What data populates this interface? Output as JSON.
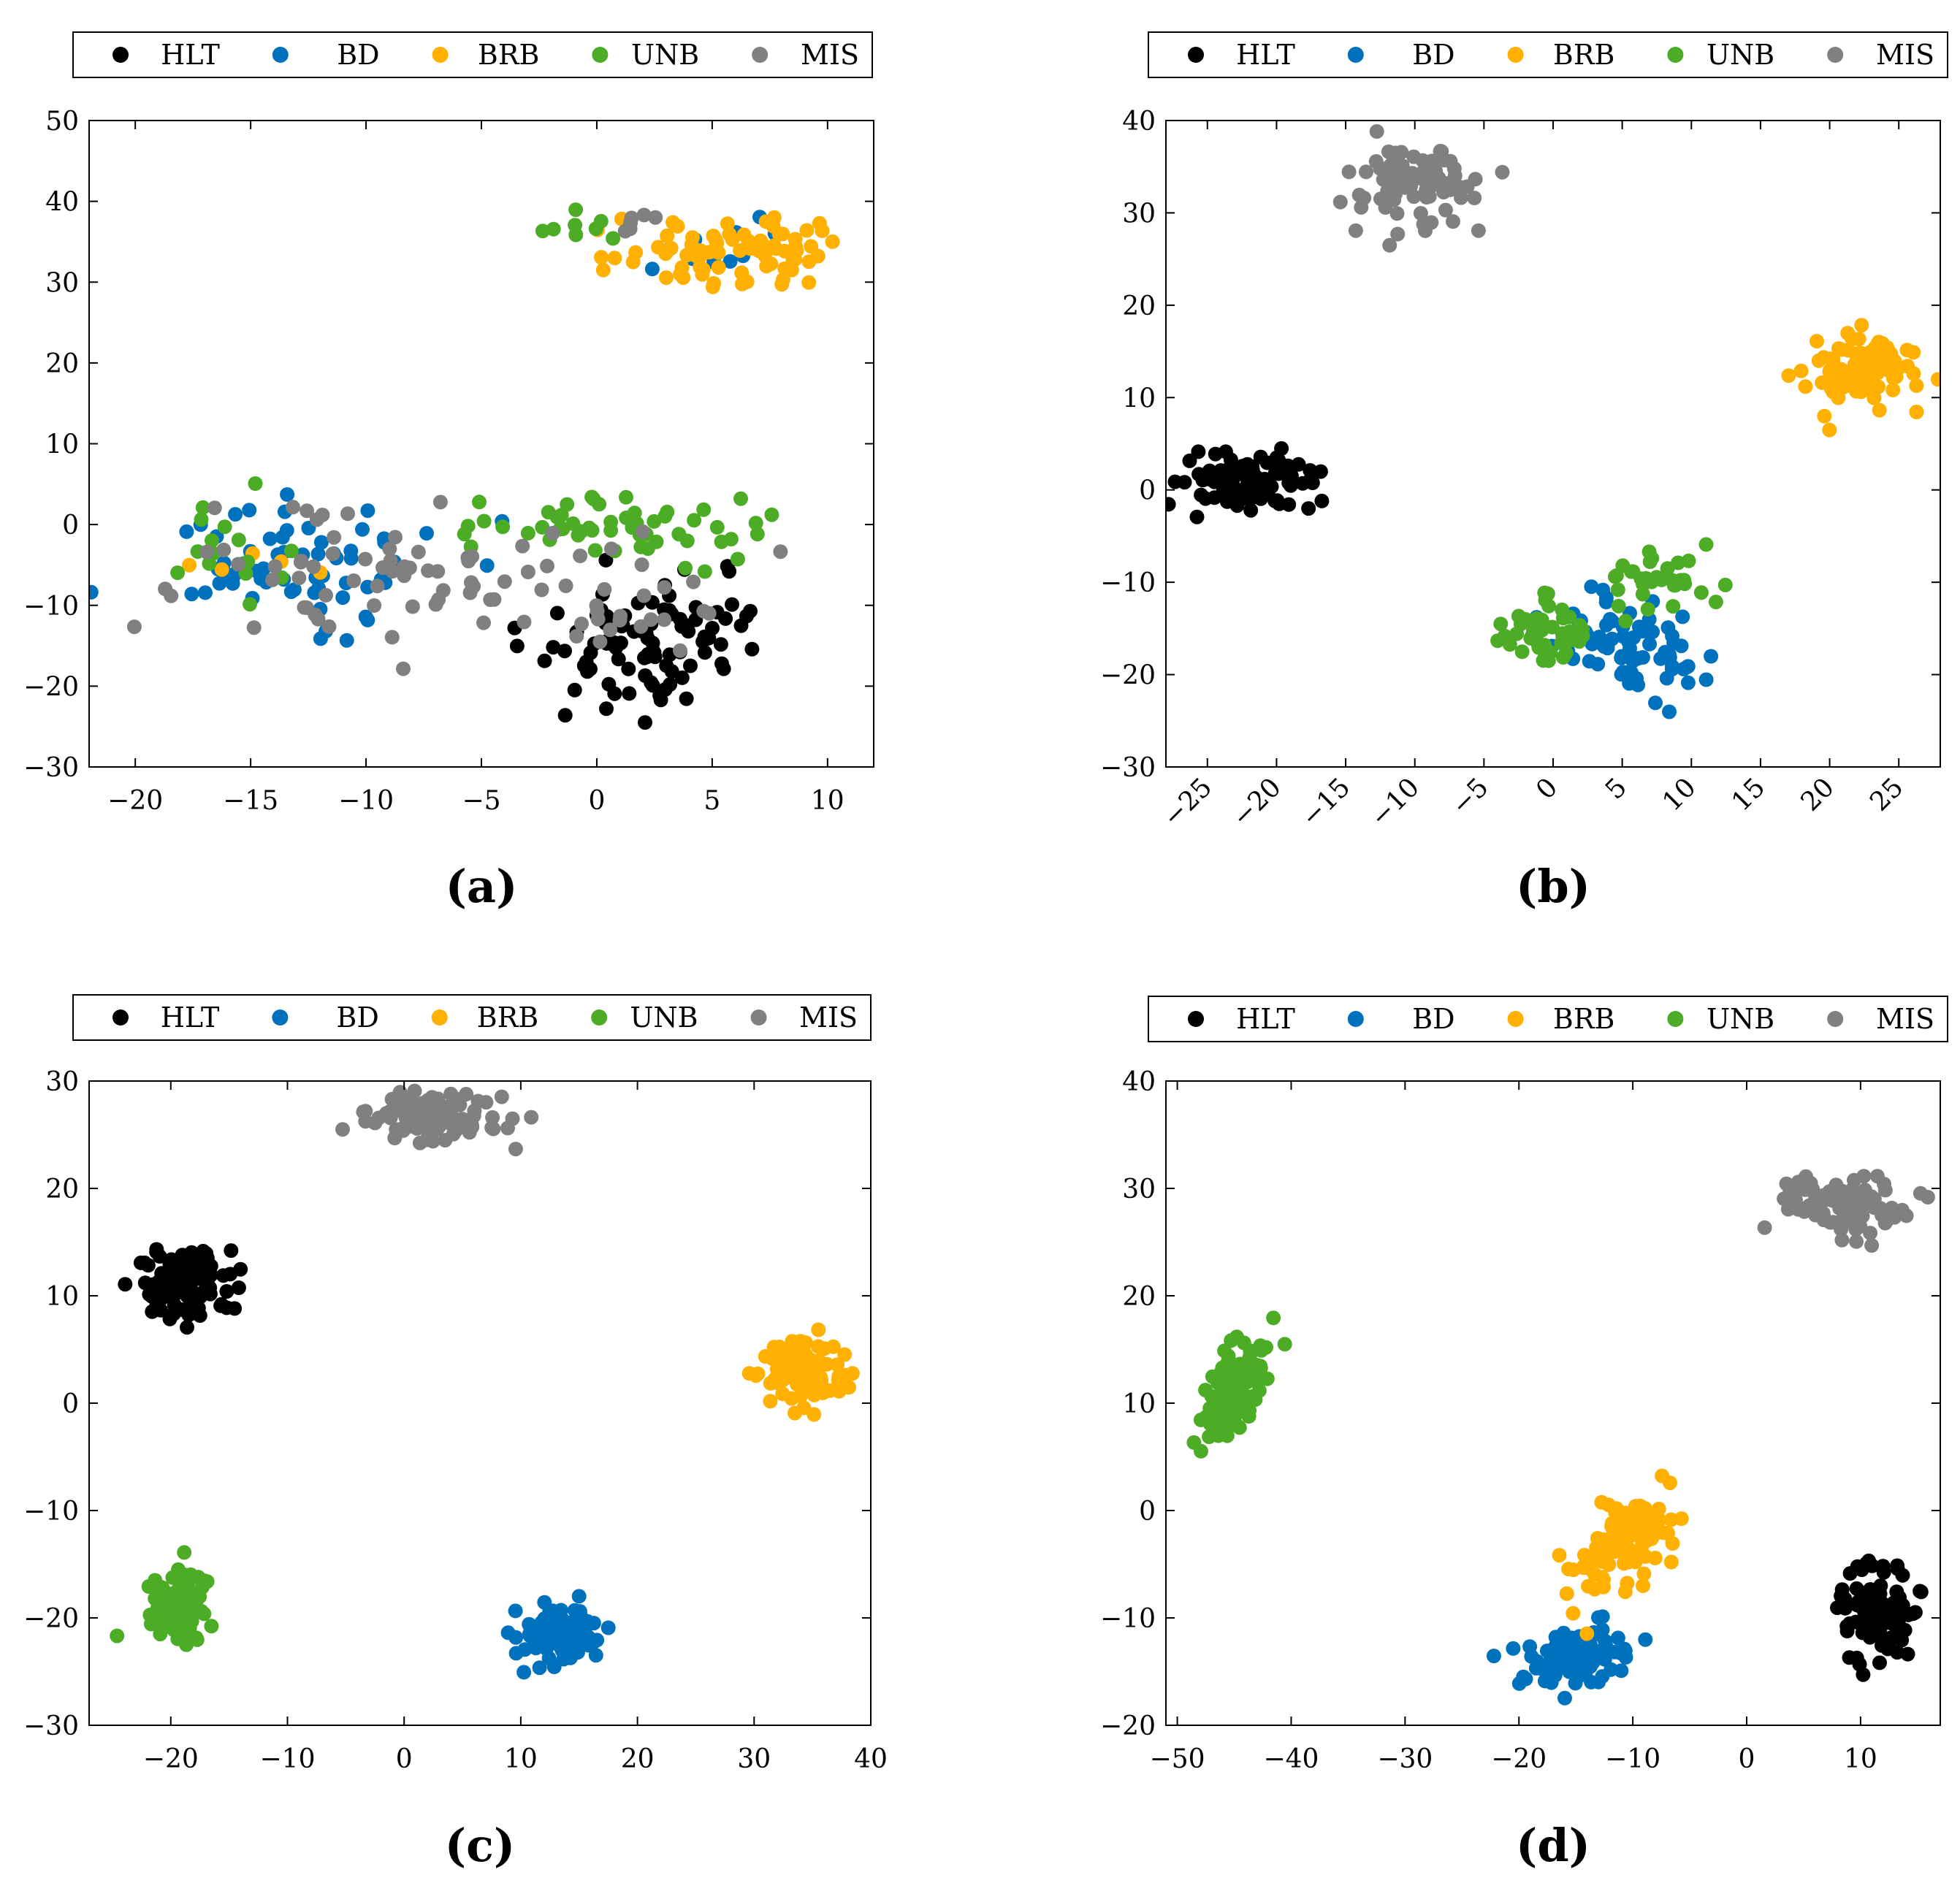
{
  "figure": {
    "colors": {
      "HLT": "#000000",
      "BD": "#0072BD",
      "BRB": "#FFB000",
      "UNB": "#4DAC26",
      "MIS": "#808080"
    }
  },
  "chart_data": [
    {
      "type": "scatter",
      "panel_label": "(a)",
      "legend": [
        "HLT",
        "BD",
        "BRB",
        "UNB",
        "MIS"
      ],
      "xlim": [
        -22,
        12
      ],
      "ylim": [
        -30,
        50
      ],
      "xticks": [
        -20,
        -15,
        -10,
        -5,
        0,
        5,
        10
      ],
      "xtick_labels": [
        "−20",
        "−15",
        "−10",
        "−5",
        "0",
        "5",
        "10"
      ],
      "yticks": [
        -30,
        -20,
        -10,
        0,
        10,
        20,
        30,
        40,
        50
      ],
      "ytick_labels": [
        "−30",
        "−20",
        "−10",
        "0",
        "10",
        "20",
        "30",
        "40",
        "50"
      ],
      "xtick_rotation": 0,
      "series": [
        {
          "name": "HLT",
          "clusters": [
            {
              "cx": 1.5,
              "cy": -16,
              "sx": 2.0,
              "sy": 4.0,
              "n": 70,
              "r": 0.15
            },
            {
              "cx": 4.5,
              "cy": -12,
              "sx": 1.5,
              "sy": 3.0,
              "n": 25,
              "r": 0
            }
          ]
        },
        {
          "name": "BD",
          "clusters": [
            {
              "cx": -13,
              "cy": -4,
              "sx": 4.0,
              "sy": 4.0,
              "n": 65,
              "r": 0
            },
            {
              "cx": 5.0,
              "cy": 35,
              "sx": 2.0,
              "sy": 2.0,
              "n": 10,
              "r": 0
            }
          ]
        },
        {
          "name": "BRB",
          "clusters": [
            {
              "cx": 6.0,
              "cy": 34,
              "sx": 2.5,
              "sy": 2.5,
              "n": 80,
              "r": 0
            },
            {
              "cx": -16,
              "cy": -3,
              "sx": 2.0,
              "sy": 2.0,
              "n": 5,
              "r": 0
            }
          ]
        },
        {
          "name": "UNB",
          "clusters": [
            {
              "cx": 0.5,
              "cy": -0.5,
              "sx": 3.5,
              "sy": 2.0,
              "n": 55,
              "r": 0
            },
            {
              "cx": -16,
              "cy": -4,
              "sx": 1.5,
              "sy": 4.0,
              "n": 15,
              "r": 0
            },
            {
              "cx": -0.5,
              "cy": 37,
              "sx": 1.0,
              "sy": 1.0,
              "n": 8,
              "r": 0
            }
          ]
        },
        {
          "name": "MIS",
          "clusters": [
            {
              "cx": -8,
              "cy": -6,
              "sx": 5.0,
              "sy": 4.0,
              "n": 75,
              "r": 0
            },
            {
              "cx": 2.0,
              "cy": -12,
              "sx": 1.5,
              "sy": 3.0,
              "n": 15,
              "r": 0
            },
            {
              "cx": 1.5,
              "cy": 37,
              "sx": 1.0,
              "sy": 1.0,
              "n": 6,
              "r": 0
            }
          ]
        }
      ]
    },
    {
      "type": "scatter",
      "panel_label": "(b)",
      "legend": [
        "HLT",
        "BD",
        "BRB",
        "UNB",
        "MIS"
      ],
      "xlim": [
        -28,
        28
      ],
      "ylim": [
        -30,
        40
      ],
      "xticks": [
        -25,
        -20,
        -15,
        -10,
        -5,
        0,
        5,
        10,
        15,
        20,
        25
      ],
      "xtick_labels": [
        "−25",
        "−20",
        "−15",
        "−10",
        "−5",
        "0",
        "5",
        "10",
        "15",
        "20",
        "25"
      ],
      "yticks": [
        -30,
        -20,
        -10,
        0,
        10,
        20,
        30,
        40
      ],
      "ytick_labels": [
        "−30",
        "−20",
        "−10",
        "0",
        "10",
        "20",
        "30",
        "40"
      ],
      "xtick_rotation": -45,
      "series": [
        {
          "name": "HLT",
          "clusters": [
            {
              "cx": -22.5,
              "cy": 0.5,
              "sx": 2.5,
              "sy": 1.6,
              "n": 100,
              "r": 0
            }
          ]
        },
        {
          "name": "BD",
          "clusters": [
            {
              "cx": 5.0,
              "cy": -17,
              "sx": 2.5,
              "sy": 3.0,
              "n": 75,
              "r": -0.4
            }
          ]
        },
        {
          "name": "BRB",
          "clusters": [
            {
              "cx": 22.5,
              "cy": 13.5,
              "sx": 2.0,
              "sy": 2.2,
              "n": 100,
              "r": 0
            }
          ]
        },
        {
          "name": "UNB",
          "clusters": [
            {
              "cx": 0.0,
              "cy": -15,
              "sx": 2.0,
              "sy": 2.0,
              "n": 45,
              "r": 0
            },
            {
              "cx": 7.5,
              "cy": -10,
              "sx": 2.0,
              "sy": 1.6,
              "n": 35,
              "r": 0
            }
          ]
        },
        {
          "name": "MIS",
          "clusters": [
            {
              "cx": -10,
              "cy": 33,
              "sx": 2.2,
              "sy": 2.5,
              "n": 85,
              "r": 0
            }
          ]
        }
      ]
    },
    {
      "type": "scatter",
      "panel_label": "(c)",
      "legend": [
        "HLT",
        "BD",
        "BRB",
        "UNB",
        "MIS"
      ],
      "xlim": [
        -27,
        40
      ],
      "ylim": [
        -30,
        30
      ],
      "xticks": [
        -20,
        -10,
        0,
        10,
        20,
        30,
        40
      ],
      "xtick_labels": [
        "−20",
        "−10",
        "0",
        "10",
        "20",
        "30",
        "40"
      ],
      "yticks": [
        -30,
        -20,
        -10,
        0,
        10,
        20,
        30
      ],
      "ytick_labels": [
        "−30",
        "−20",
        "−10",
        "0",
        "10",
        "20",
        "30"
      ],
      "xtick_rotation": 0,
      "series": [
        {
          "name": "HLT",
          "clusters": [
            {
              "cx": -19,
              "cy": 11,
              "sx": 2.0,
              "sy": 1.7,
              "n": 100,
              "r": 0
            }
          ]
        },
        {
          "name": "BD",
          "clusters": [
            {
              "cx": 13.5,
              "cy": -21.5,
              "sx": 2.0,
              "sy": 1.4,
              "n": 100,
              "r": 0
            }
          ]
        },
        {
          "name": "BRB",
          "clusters": [
            {
              "cx": 34,
              "cy": 3,
              "sx": 1.8,
              "sy": 1.5,
              "n": 100,
              "r": 0
            }
          ]
        },
        {
          "name": "UNB",
          "clusters": [
            {
              "cx": -19.5,
              "cy": -19,
              "sx": 1.7,
              "sy": 1.7,
              "n": 100,
              "r": 0
            }
          ]
        },
        {
          "name": "MIS",
          "clusters": [
            {
              "cx": 2.5,
              "cy": 26.5,
              "sx": 3.0,
              "sy": 1.2,
              "n": 100,
              "r": 0
            }
          ]
        }
      ]
    },
    {
      "type": "scatter",
      "panel_label": "(d)",
      "legend": [
        "HLT",
        "BD",
        "BRB",
        "UNB",
        "MIS"
      ],
      "xlim": [
        -51,
        17
      ],
      "ylim": [
        -20,
        40
      ],
      "xticks": [
        -50,
        -40,
        -30,
        -20,
        -10,
        0,
        10
      ],
      "xtick_labels": [
        "−50",
        "−40",
        "−30",
        "−20",
        "−10",
        "0",
        "10"
      ],
      "yticks": [
        -20,
        -10,
        0,
        10,
        20,
        30,
        40
      ],
      "ytick_labels": [
        "−20",
        "−10",
        "0",
        "10",
        "20",
        "30",
        "40"
      ],
      "xtick_rotation": 0,
      "series": [
        {
          "name": "HLT",
          "clusters": [
            {
              "cx": 11.5,
              "cy": -9.5,
              "sx": 1.8,
              "sy": 2.2,
              "n": 100,
              "r": 0
            }
          ]
        },
        {
          "name": "BD",
          "clusters": [
            {
              "cx": -15,
              "cy": -13.5,
              "sx": 2.5,
              "sy": 1.4,
              "n": 100,
              "r": 0.3
            }
          ]
        },
        {
          "name": "BRB",
          "clusters": [
            {
              "cx": -10,
              "cy": -2,
              "sx": 2.0,
              "sy": 2.5,
              "n": 100,
              "r": 0.5
            }
          ]
        },
        {
          "name": "UNB",
          "clusters": [
            {
              "cx": -45,
              "cy": 11,
              "sx": 1.6,
              "sy": 2.5,
              "n": 100,
              "r": 0.6
            }
          ]
        },
        {
          "name": "MIS",
          "clusters": [
            {
              "cx": 8.5,
              "cy": 28.5,
              "sx": 3.0,
              "sy": 1.3,
              "n": 100,
              "r": -0.2
            }
          ]
        }
      ]
    }
  ]
}
